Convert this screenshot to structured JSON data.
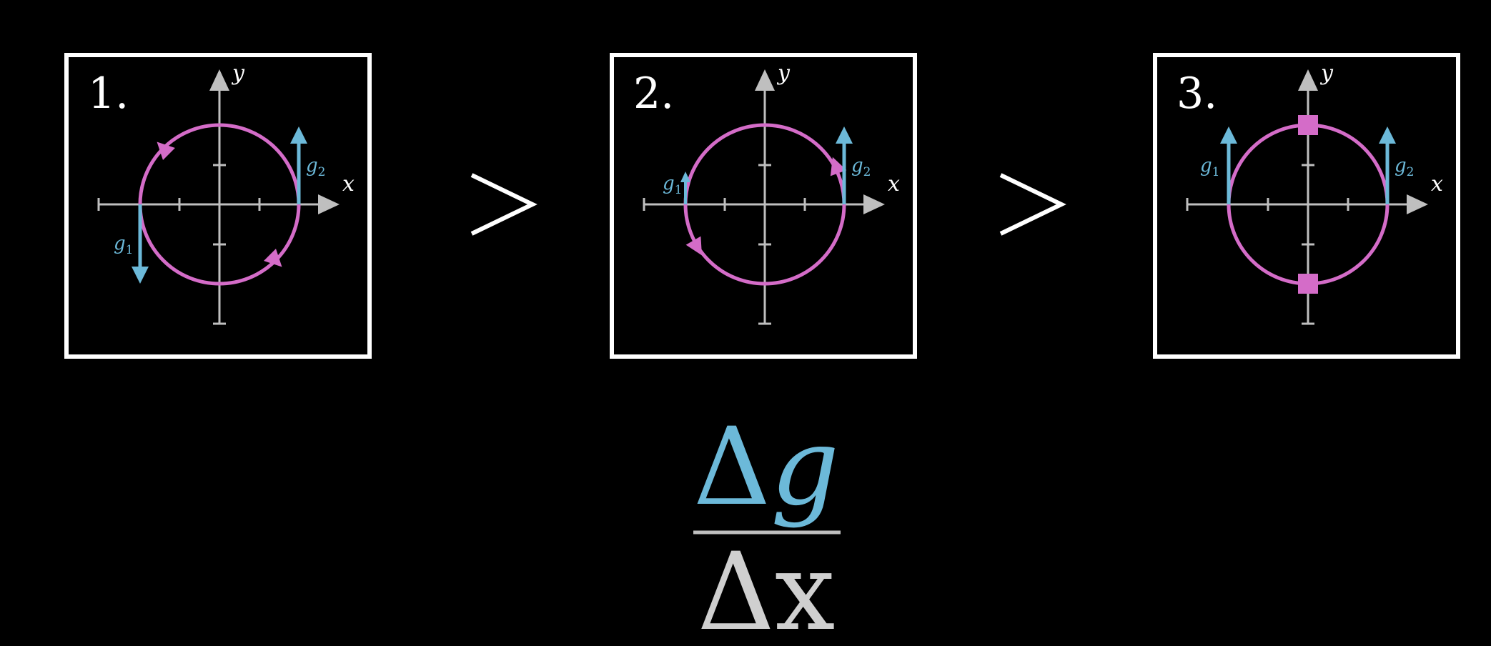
{
  "panels": [
    {
      "number": "1.",
      "x_label": "x",
      "y_label": "y",
      "g1": {
        "label": "g",
        "sub": "1",
        "direction": "down"
      },
      "g2": {
        "label": "g",
        "sub": "2",
        "direction": "up"
      },
      "circulation": "counterclockwise"
    },
    {
      "number": "2.",
      "x_label": "x",
      "y_label": "y",
      "g1": {
        "label": "g",
        "sub": "1",
        "direction": "up",
        "magnitude": "small"
      },
      "g2": {
        "label": "g",
        "sub": "2",
        "direction": "up"
      },
      "circulation": "counterclockwise"
    },
    {
      "number": "3.",
      "x_label": "x",
      "y_label": "y",
      "g1": {
        "label": "g",
        "sub": "1",
        "direction": "up"
      },
      "g2": {
        "label": "g",
        "sub": "2",
        "direction": "up"
      },
      "circulation": "none"
    }
  ],
  "comparisons": [
    ">",
    ">"
  ],
  "formula": {
    "numerator": "Δg",
    "numerator_delta": "Δ",
    "numerator_var": "g",
    "denominator": "Δx"
  },
  "colors": {
    "circle": "#d46cc8",
    "vector": "#6cb9d9",
    "axis": "#bfbfbf",
    "frame": "#ffffff",
    "background": "#000000"
  }
}
